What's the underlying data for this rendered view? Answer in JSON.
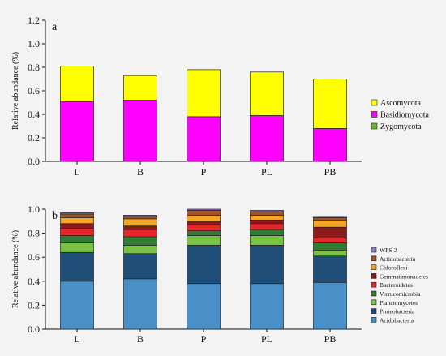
{
  "chart_data": [
    {
      "panel_label": "a",
      "type": "bar",
      "stacked": true,
      "categories": [
        "L",
        "B",
        "P",
        "PL",
        "PB"
      ],
      "ylabel": "Relative abundance (%)",
      "ylim": [
        0,
        1.2
      ],
      "yticks": [
        "0.0",
        "0.2",
        "0.4",
        "0.6",
        "0.8",
        "1.0",
        "1.2"
      ],
      "legend_position": "right",
      "series": [
        {
          "name": "Zygomycota",
          "color": "#66bb33",
          "values": [
            0.0,
            0.0,
            0.0,
            0.0,
            0.0
          ]
        },
        {
          "name": "Basidiomycota",
          "color": "#ff00ff",
          "values": [
            0.51,
            0.52,
            0.38,
            0.39,
            0.28
          ]
        },
        {
          "name": "Ascomycota",
          "color": "#ffff00",
          "values": [
            0.3,
            0.21,
            0.4,
            0.37,
            0.42
          ]
        }
      ]
    },
    {
      "panel_label": "b",
      "type": "bar",
      "stacked": true,
      "categories": [
        "L",
        "B",
        "P",
        "PL",
        "PB"
      ],
      "ylabel": "Relative abundance (%)",
      "ylim": [
        0,
        1.0
      ],
      "yticks": [
        "0.0",
        "0.2",
        "0.4",
        "0.6",
        "0.8",
        "1.0"
      ],
      "legend_position": "right",
      "series": [
        {
          "name": "Acidobacteria",
          "color": "#4a90c8",
          "values": [
            0.4,
            0.42,
            0.38,
            0.38,
            0.39
          ]
        },
        {
          "name": "Proteobacteria",
          "color": "#1f4e79",
          "values": [
            0.24,
            0.21,
            0.32,
            0.32,
            0.22
          ]
        },
        {
          "name": "Planctomycetes",
          "color": "#7cc242",
          "values": [
            0.08,
            0.07,
            0.08,
            0.08,
            0.05
          ]
        },
        {
          "name": "Verrucomicrobia",
          "color": "#2e7d32",
          "values": [
            0.06,
            0.07,
            0.04,
            0.05,
            0.06
          ]
        },
        {
          "name": "Bacteroidetes",
          "color": "#e8262a",
          "values": [
            0.06,
            0.06,
            0.05,
            0.05,
            0.04
          ]
        },
        {
          "name": "Gemmatimonadetes",
          "color": "#8b1a1a",
          "values": [
            0.04,
            0.03,
            0.03,
            0.03,
            0.09
          ]
        },
        {
          "name": "Chloroflexi",
          "color": "#f5a623",
          "values": [
            0.05,
            0.06,
            0.05,
            0.04,
            0.06
          ]
        },
        {
          "name": "Actinobacteria",
          "color": "#a0522d",
          "values": [
            0.03,
            0.02,
            0.04,
            0.03,
            0.02
          ]
        },
        {
          "name": "WPS-2",
          "color": "#8e7cc3",
          "values": [
            0.01,
            0.01,
            0.01,
            0.01,
            0.01
          ]
        }
      ]
    }
  ]
}
